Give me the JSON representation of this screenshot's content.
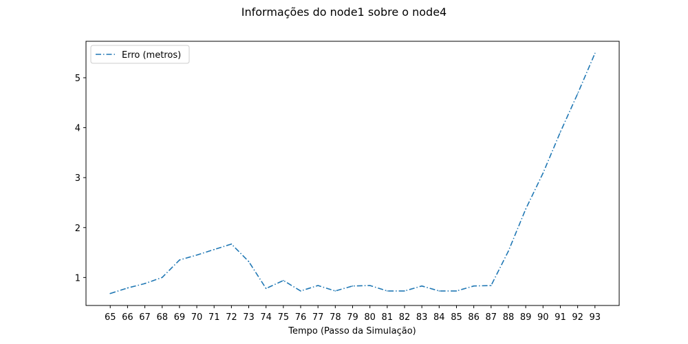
{
  "chart_data": {
    "type": "line",
    "title": "Informações do node1 sobre o node4",
    "xlabel": "Tempo (Passo da Simulação)",
    "ylabel": "",
    "x": [
      65,
      66,
      67,
      68,
      69,
      70,
      71,
      72,
      73,
      74,
      75,
      76,
      77,
      78,
      79,
      80,
      81,
      82,
      83,
      84,
      85,
      86,
      87,
      88,
      89,
      90,
      91,
      92,
      93
    ],
    "series": [
      {
        "name": "Erro (metros)",
        "color": "#1f77b4",
        "line_style": "dash-dot",
        "values": [
          0.68,
          0.79,
          0.88,
          1.0,
          1.35,
          1.45,
          1.56,
          1.67,
          1.32,
          0.78,
          0.94,
          0.73,
          0.84,
          0.73,
          0.83,
          0.84,
          0.73,
          0.73,
          0.83,
          0.73,
          0.73,
          0.83,
          0.84,
          1.53,
          2.37,
          3.09,
          3.91,
          4.68,
          5.49
        ]
      }
    ],
    "xlim": [
      63.6,
      94.4
    ],
    "ylim": [
      0.44,
      5.73
    ],
    "y_ticks": [
      1,
      2,
      3,
      4,
      5
    ],
    "grid": false,
    "legend_position": "upper-left"
  }
}
